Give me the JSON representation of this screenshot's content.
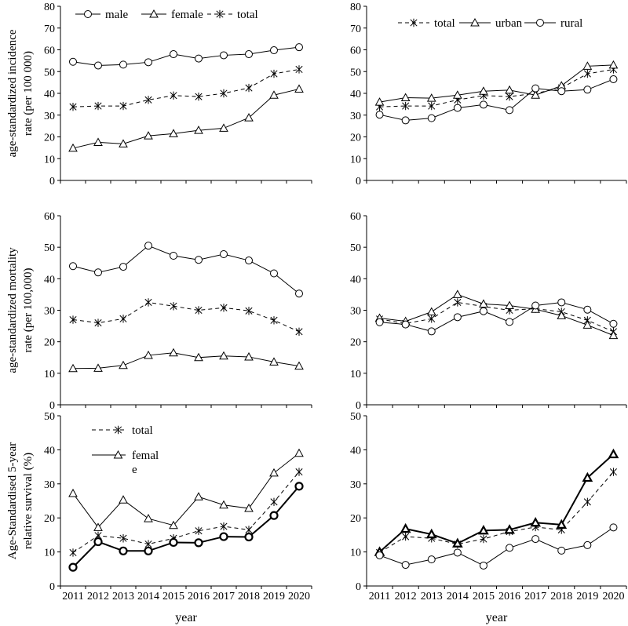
{
  "chart_data": [
    {
      "type": "line",
      "panel": "incidence-by-sex",
      "ylabel": "age-standardized incidence rate (per 100 000)",
      "ylabel_lines": [
        "age-standardized incidence",
        "rate (per 100 000)"
      ],
      "xlabel": "",
      "ylim": [
        0,
        80
      ],
      "yticks": [
        0,
        10,
        20,
        30,
        40,
        50,
        60,
        70,
        80
      ],
      "categories": [
        "2011",
        "2012",
        "2013",
        "2014",
        "2015",
        "2016",
        "2017",
        "2018",
        "2019",
        "2020"
      ],
      "show_xticks": false,
      "legend_position": "top",
      "series": [
        {
          "name": "male",
          "marker": "circle",
          "dash": "solid",
          "bold": false,
          "values": [
            54.5,
            52.8,
            53.2,
            54.3,
            58.0,
            56.0,
            57.5,
            58.0,
            59.8,
            61.2
          ]
        },
        {
          "name": "female",
          "marker": "triangle",
          "dash": "solid",
          "bold": false,
          "values": [
            14.8,
            17.5,
            16.8,
            20.5,
            21.5,
            23.0,
            24.0,
            28.8,
            39.2,
            42.0
          ]
        },
        {
          "name": "total",
          "marker": "asterisk",
          "dash": "dashed",
          "bold": false,
          "values": [
            33.8,
            34.2,
            34.2,
            37.0,
            39.0,
            38.5,
            40.0,
            42.5,
            49.0,
            51.0
          ]
        }
      ]
    },
    {
      "type": "line",
      "panel": "incidence-by-area",
      "ylabel": "",
      "xlabel": "",
      "ylim": [
        0,
        80
      ],
      "yticks": [
        0,
        10,
        20,
        30,
        40,
        50,
        60,
        70,
        80
      ],
      "categories": [
        "2011",
        "2012",
        "2013",
        "2014",
        "2015",
        "2016",
        "2017",
        "2018",
        "2019",
        "2020"
      ],
      "show_xticks": false,
      "legend_position": "top",
      "series": [
        {
          "name": "total",
          "marker": "asterisk",
          "dash": "dashed",
          "bold": false,
          "values": [
            33.8,
            34.2,
            34.2,
            37.0,
            39.0,
            38.5,
            40.0,
            42.5,
            49.0,
            51.0
          ]
        },
        {
          "name": "urban",
          "marker": "triangle",
          "dash": "solid",
          "bold": false,
          "values": [
            36.0,
            38.0,
            37.8,
            39.2,
            41.0,
            41.5,
            39.2,
            43.5,
            52.5,
            53.0
          ]
        },
        {
          "name": "rural",
          "marker": "circle",
          "dash": "solid",
          "bold": false,
          "values": [
            30.2,
            27.6,
            28.6,
            33.3,
            34.8,
            32.3,
            42.3,
            41.0,
            41.7,
            46.5
          ]
        }
      ]
    },
    {
      "type": "line",
      "panel": "mortality-by-sex",
      "ylabel": "age-standardized mortality rate (per 100,000)",
      "ylabel_lines": [
        "age-standardized mortality",
        "rate (per 100,000)"
      ],
      "xlabel": "",
      "ylim": [
        0,
        60
      ],
      "yticks": [
        0,
        10,
        20,
        30,
        40,
        50,
        60
      ],
      "categories": [
        "2011",
        "2012",
        "2013",
        "2014",
        "2015",
        "2016",
        "2017",
        "2018",
        "2019",
        "2020"
      ],
      "show_xticks": false,
      "legend_position": "none",
      "series": [
        {
          "name": "male",
          "marker": "circle",
          "dash": "solid",
          "bold": false,
          "values": [
            44.0,
            42.0,
            43.8,
            50.5,
            47.3,
            46.0,
            47.8,
            45.8,
            41.7,
            35.3
          ]
        },
        {
          "name": "total",
          "marker": "asterisk",
          "dash": "dashed",
          "bold": false,
          "values": [
            27.0,
            26.0,
            27.3,
            32.5,
            31.3,
            30.0,
            30.8,
            29.8,
            26.8,
            23.2
          ]
        },
        {
          "name": "female",
          "marker": "triangle",
          "dash": "solid",
          "bold": false,
          "values": [
            11.5,
            11.6,
            12.5,
            15.7,
            16.5,
            15.0,
            15.5,
            15.2,
            13.6,
            12.3
          ]
        }
      ]
    },
    {
      "type": "line",
      "panel": "mortality-by-area",
      "ylabel": "",
      "xlabel": "",
      "ylim": [
        0,
        60
      ],
      "yticks": [
        0,
        10,
        20,
        30,
        40,
        50,
        60
      ],
      "categories": [
        "2011",
        "2012",
        "2013",
        "2014",
        "2015",
        "2016",
        "2017",
        "2018",
        "2019",
        "2020"
      ],
      "show_xticks": false,
      "legend_position": "none",
      "series": [
        {
          "name": "total",
          "marker": "asterisk",
          "dash": "dashed",
          "bold": false,
          "values": [
            27.2,
            25.8,
            27.3,
            32.5,
            31.2,
            30.0,
            30.5,
            29.5,
            26.8,
            23.2
          ]
        },
        {
          "name": "urban",
          "marker": "triangle",
          "dash": "solid",
          "bold": false,
          "values": [
            27.5,
            26.5,
            29.5,
            35.0,
            32.0,
            31.5,
            30.3,
            28.3,
            25.3,
            22.0
          ]
        },
        {
          "name": "rural",
          "marker": "circle",
          "dash": "solid",
          "bold": false,
          "values": [
            26.2,
            25.5,
            23.3,
            27.8,
            29.7,
            26.3,
            31.5,
            32.5,
            30.2,
            25.7
          ]
        }
      ]
    },
    {
      "type": "line",
      "panel": "survival-by-sex",
      "ylabel": "Age-Standardised 5-year relative survival (%)",
      "ylabel_lines": [
        "Age-Standardised 5-year",
        "relative survival (%)"
      ],
      "xlabel": "year",
      "ylim": [
        0,
        50
      ],
      "yticks": [
        0,
        10,
        20,
        30,
        40,
        50
      ],
      "categories": [
        "2011",
        "2012",
        "2013",
        "2014",
        "2015",
        "2016",
        "2017",
        "2018",
        "2019",
        "2020"
      ],
      "show_xticks": true,
      "legend_position": "upper-left",
      "series": [
        {
          "name": "total",
          "marker": "asterisk",
          "dash": "dashed",
          "bold": false,
          "values": [
            9.8,
            14.8,
            14.0,
            12.3,
            14.0,
            16.2,
            17.5,
            16.5,
            24.7,
            33.5
          ]
        },
        {
          "name": "femal e",
          "legend_lines": [
            "femal",
            "e"
          ],
          "marker": "triangle",
          "dash": "solid",
          "bold": false,
          "values": [
            27.2,
            17.2,
            25.3,
            19.8,
            17.8,
            26.2,
            23.8,
            22.8,
            33.2,
            39.0
          ]
        },
        {
          "name": "male",
          "marker": "circle",
          "dash": "solid",
          "bold": true,
          "in_legend": false,
          "values": [
            5.5,
            13.0,
            10.3,
            10.3,
            12.8,
            12.7,
            14.5,
            14.4,
            20.7,
            29.3
          ]
        }
      ]
    },
    {
      "type": "line",
      "panel": "survival-by-area",
      "ylabel": "",
      "xlabel": "year",
      "ylim": [
        0,
        50
      ],
      "yticks": [
        0,
        10,
        20,
        30,
        40,
        50
      ],
      "categories": [
        "2011",
        "2012",
        "2013",
        "2014",
        "2015",
        "2016",
        "2017",
        "2018",
        "2019",
        "2020"
      ],
      "show_xticks": true,
      "legend_position": "none",
      "series": [
        {
          "name": "total",
          "marker": "asterisk",
          "dash": "dashed",
          "bold": false,
          "values": [
            9.8,
            14.5,
            14.0,
            12.3,
            13.8,
            16.0,
            17.3,
            16.5,
            24.7,
            33.5
          ]
        },
        {
          "name": "urban",
          "marker": "triangle",
          "dash": "solid",
          "bold": true,
          "values": [
            10.0,
            16.8,
            15.2,
            12.5,
            16.3,
            16.5,
            18.6,
            18.0,
            31.8,
            38.7
          ]
        },
        {
          "name": "rural",
          "marker": "circle",
          "dash": "solid",
          "bold": false,
          "values": [
            9.0,
            6.2,
            7.8,
            9.8,
            6.0,
            11.2,
            13.8,
            10.4,
            12.0,
            17.2
          ]
        }
      ]
    }
  ]
}
